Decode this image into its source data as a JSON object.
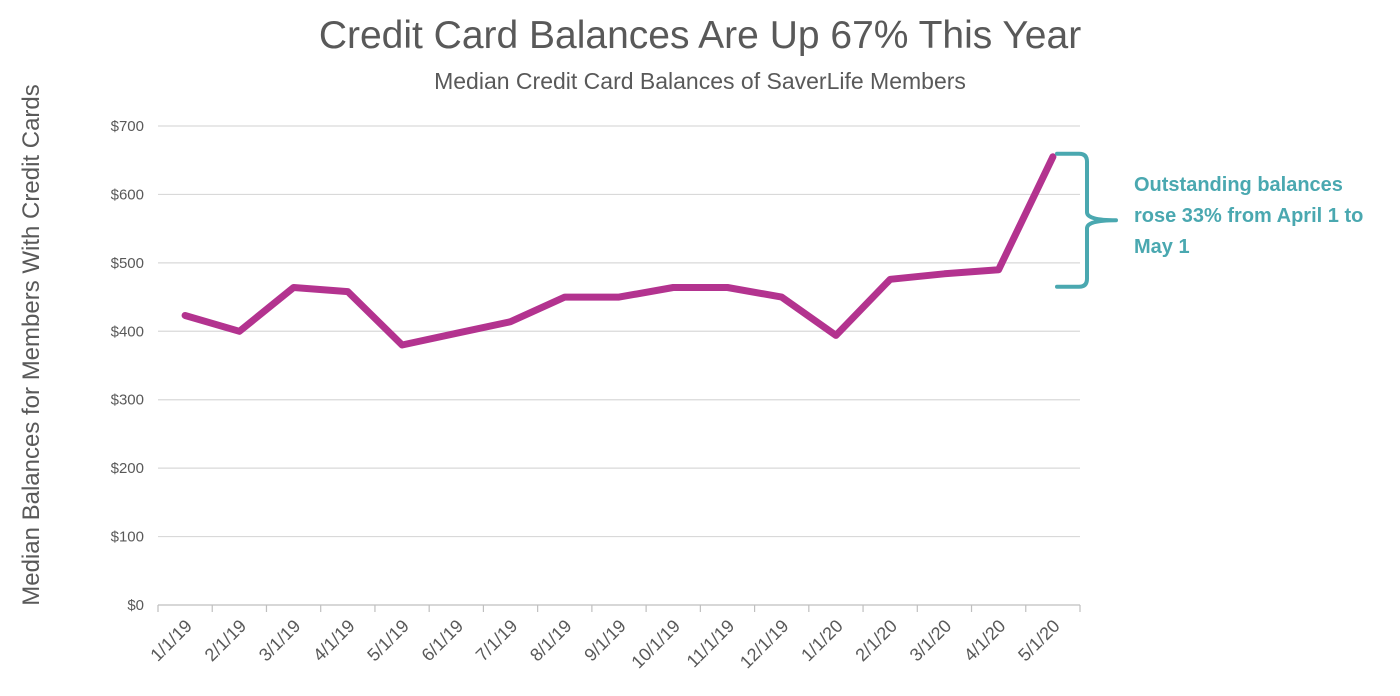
{
  "chart_data": {
    "type": "line",
    "title": "Credit Card Balances Are Up 67% This Year",
    "subtitle": "Median Credit Card Balances of SaverLife Members",
    "xlabel": "",
    "ylabel": "Median Balances for Members With Credit Cards",
    "categories": [
      "1/1/19",
      "2/1/19",
      "3/1/19",
      "4/1/19",
      "5/1/19",
      "6/1/19",
      "7/1/19",
      "8/1/19",
      "9/1/19",
      "10/1/19",
      "11/1/19",
      "12/1/19",
      "1/1/20",
      "2/1/20",
      "3/1/20",
      "4/1/20",
      "5/1/20"
    ],
    "series": [
      {
        "values": [
          423,
          400,
          464,
          458,
          380,
          397,
          414,
          450,
          450,
          464,
          464,
          450,
          394,
          476,
          484,
          490,
          655
        ],
        "color": "#b3338f"
      }
    ],
    "ylim": [
      0,
      700
    ],
    "yticks": [
      0,
      100,
      200,
      300,
      400,
      500,
      600,
      700
    ],
    "ytick_labels": [
      "$0",
      "$100",
      "$200",
      "$300",
      "$400",
      "$500",
      "$600",
      "$700"
    ],
    "grid": true,
    "legend": "none",
    "annotation": {
      "text": "Outstanding balances rose 33% from April 1 to May 1",
      "range": [
        490,
        655
      ],
      "color": "#4aa8b0"
    }
  }
}
